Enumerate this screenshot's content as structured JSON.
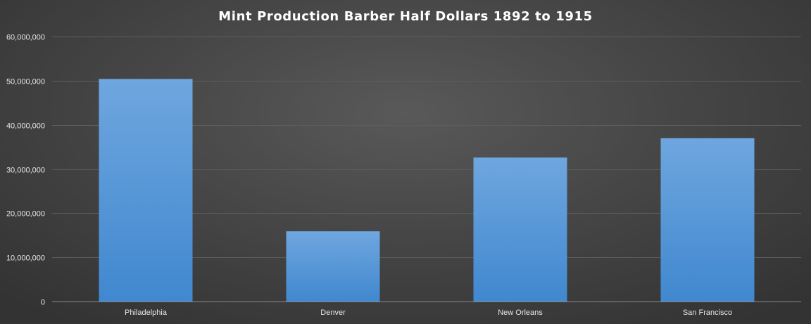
{
  "chart_data": {
    "type": "bar",
    "title": "Mint Production  Barber  Half  Dollars  1892  to  1915",
    "xlabel": "",
    "ylabel": "",
    "categories": [
      "Philadelphia",
      "Denver",
      "New Orleans",
      "San Francisco"
    ],
    "values": [
      50400000,
      15900000,
      32600000,
      37000000
    ],
    "ylim": [
      0,
      60000000
    ],
    "y_ticks": [
      0,
      10000000,
      20000000,
      30000000,
      40000000,
      50000000,
      60000000
    ],
    "y_tick_labels": [
      "0",
      "10,000,000",
      "20,000,000",
      "30,000,000",
      "40,000,000",
      "50,000,000",
      "60,000,000"
    ],
    "grid": true,
    "legend": "none",
    "colors": {
      "bar_top": "#6fa6df",
      "bar_bottom": "#4088cf",
      "text": "#e6e6e6",
      "title": "#ffffff",
      "grid": "#5d5d5d"
    }
  }
}
